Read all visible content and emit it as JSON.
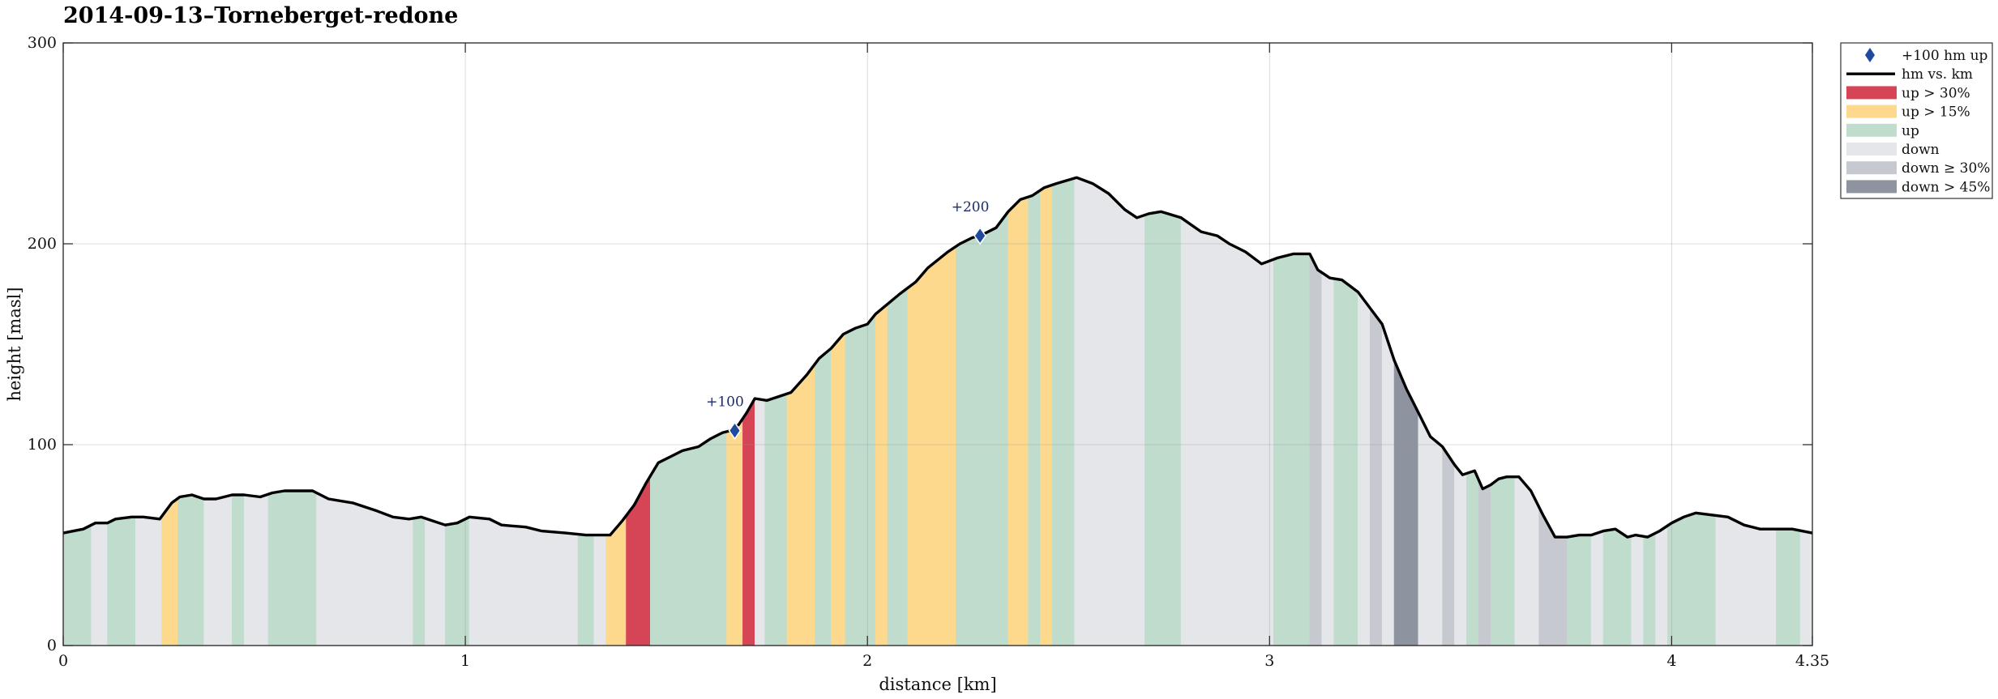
{
  "chart_data": {
    "type": "area",
    "title": "2014-09-13–Torneberget-redone",
    "xlabel": "distance [km]",
    "ylabel": "height [masl]",
    "xlim": [
      0,
      4.35
    ],
    "ylim": [
      0,
      300
    ],
    "x_ticks": [
      "0",
      "1",
      "2",
      "3",
      "4",
      "4.35"
    ],
    "x_tick_values": [
      0,
      1,
      2,
      3,
      4,
      4.35
    ],
    "y_ticks": [
      "0",
      "100",
      "200",
      "300"
    ],
    "y_tick_values": [
      0,
      100,
      200,
      300
    ],
    "grid": true,
    "legend_position": "outside-right-top",
    "legend": [
      {
        "label": "+100 hm up",
        "kind": "marker",
        "color": "#1f4aa0"
      },
      {
        "label": "hm vs. km",
        "kind": "line",
        "color": "#000000"
      },
      {
        "label": "up > 30%",
        "kind": "patch",
        "color": "#d64555"
      },
      {
        "label": "up > 15%",
        "kind": "patch",
        "color": "#fcd98d"
      },
      {
        "label": "up",
        "kind": "patch",
        "color": "#c0dccd"
      },
      {
        "label": "down",
        "kind": "patch",
        "color": "#e5e6ea"
      },
      {
        "label": "down ≥ 30%",
        "kind": "patch",
        "color": "#c7c9d0"
      },
      {
        "label": "down > 45%",
        "kind": "patch",
        "color": "#8e949f"
      }
    ],
    "profile": {
      "x": [
        0,
        0.05,
        0.08,
        0.11,
        0.13,
        0.17,
        0.2,
        0.24,
        0.27,
        0.29,
        0.32,
        0.35,
        0.38,
        0.42,
        0.45,
        0.49,
        0.52,
        0.55,
        0.62,
        0.66,
        0.72,
        0.78,
        0.82,
        0.86,
        0.89,
        0.92,
        0.95,
        0.98,
        1.01,
        1.06,
        1.09,
        1.15,
        1.19,
        1.25,
        1.3,
        1.33,
        1.36,
        1.39,
        1.42,
        1.45,
        1.48,
        1.51,
        1.54,
        1.58,
        1.61,
        1.64,
        1.66,
        1.68,
        1.7,
        1.72,
        1.75,
        1.78,
        1.81,
        1.85,
        1.88,
        1.91,
        1.94,
        1.97,
        2.0,
        2.02,
        2.05,
        2.08,
        2.12,
        2.15,
        2.2,
        2.23,
        2.26,
        2.29,
        2.32,
        2.35,
        2.38,
        2.41,
        2.44,
        2.47,
        2.52,
        2.56,
        2.6,
        2.64,
        2.67,
        2.7,
        2.73,
        2.78,
        2.83,
        2.87,
        2.9,
        2.94,
        2.98,
        3.02,
        3.06,
        3.1,
        3.12,
        3.15,
        3.18,
        3.22,
        3.25,
        3.28,
        3.31,
        3.34,
        3.37,
        3.4,
        3.43,
        3.46,
        3.48,
        3.51,
        3.53,
        3.55,
        3.57,
        3.59,
        3.62,
        3.65,
        3.68,
        3.71,
        3.74,
        3.77,
        3.8,
        3.83,
        3.86,
        3.89,
        3.91,
        3.94,
        3.97,
        4.0,
        4.03,
        4.06,
        4.1,
        4.14,
        4.18,
        4.22,
        4.26,
        4.3,
        4.35
      ],
      "y": [
        56,
        58,
        61,
        61,
        63,
        64,
        64,
        63,
        71,
        74,
        75,
        73,
        73,
        75,
        75,
        74,
        76,
        77,
        77,
        73,
        71,
        67,
        64,
        63,
        64,
        62,
        60,
        61,
        64,
        63,
        60,
        59,
        57,
        56,
        55,
        55,
        55,
        62,
        70,
        81,
        91,
        94,
        97,
        99,
        103,
        106,
        107,
        110,
        116,
        123,
        122,
        124,
        126,
        135,
        143,
        148,
        155,
        158,
        160,
        165,
        170,
        175,
        181,
        188,
        196,
        200,
        203,
        205,
        208,
        216,
        222,
        224,
        228,
        230,
        233,
        230,
        225,
        217,
        213,
        215,
        216,
        213,
        206,
        204,
        200,
        196,
        190,
        193,
        195,
        195,
        187,
        183,
        182,
        176,
        168,
        160,
        142,
        128,
        116,
        104,
        99,
        90,
        85,
        87,
        78,
        80,
        83,
        84,
        84,
        77,
        65,
        54,
        54,
        55,
        55,
        57,
        58,
        54,
        55,
        54,
        57,
        61,
        64,
        66,
        65,
        64,
        60,
        58,
        58,
        58,
        56
      ]
    },
    "segments": [
      {
        "x0": 0.0,
        "x1": 0.07,
        "cat": "up"
      },
      {
        "x0": 0.07,
        "x1": 0.11,
        "cat": "down"
      },
      {
        "x0": 0.11,
        "x1": 0.18,
        "cat": "up"
      },
      {
        "x0": 0.18,
        "x1": 0.245,
        "cat": "down"
      },
      {
        "x0": 0.245,
        "x1": 0.285,
        "cat": "up15"
      },
      {
        "x0": 0.285,
        "x1": 0.35,
        "cat": "up"
      },
      {
        "x0": 0.35,
        "x1": 0.42,
        "cat": "down"
      },
      {
        "x0": 0.42,
        "x1": 0.45,
        "cat": "up"
      },
      {
        "x0": 0.45,
        "x1": 0.51,
        "cat": "down"
      },
      {
        "x0": 0.51,
        "x1": 0.63,
        "cat": "up"
      },
      {
        "x0": 0.63,
        "x1": 0.87,
        "cat": "down"
      },
      {
        "x0": 0.87,
        "x1": 0.9,
        "cat": "up"
      },
      {
        "x0": 0.9,
        "x1": 0.95,
        "cat": "down"
      },
      {
        "x0": 0.95,
        "x1": 1.01,
        "cat": "up"
      },
      {
        "x0": 1.01,
        "x1": 1.28,
        "cat": "down"
      },
      {
        "x0": 1.28,
        "x1": 1.32,
        "cat": "up"
      },
      {
        "x0": 1.32,
        "x1": 1.35,
        "cat": "down"
      },
      {
        "x0": 1.35,
        "x1": 1.4,
        "cat": "up15"
      },
      {
        "x0": 1.4,
        "x1": 1.46,
        "cat": "up30"
      },
      {
        "x0": 1.46,
        "x1": 1.65,
        "cat": "up"
      },
      {
        "x0": 1.65,
        "x1": 1.69,
        "cat": "up15"
      },
      {
        "x0": 1.69,
        "x1": 1.72,
        "cat": "up30"
      },
      {
        "x0": 1.72,
        "x1": 1.745,
        "cat": "down"
      },
      {
        "x0": 1.745,
        "x1": 1.8,
        "cat": "up"
      },
      {
        "x0": 1.8,
        "x1": 1.87,
        "cat": "up15"
      },
      {
        "x0": 1.87,
        "x1": 1.91,
        "cat": "up"
      },
      {
        "x0": 1.91,
        "x1": 1.945,
        "cat": "up15"
      },
      {
        "x0": 1.945,
        "x1": 2.02,
        "cat": "up"
      },
      {
        "x0": 2.02,
        "x1": 2.05,
        "cat": "up15"
      },
      {
        "x0": 2.05,
        "x1": 2.1,
        "cat": "up"
      },
      {
        "x0": 2.1,
        "x1": 2.22,
        "cat": "up15"
      },
      {
        "x0": 2.22,
        "x1": 2.35,
        "cat": "up"
      },
      {
        "x0": 2.35,
        "x1": 2.4,
        "cat": "up15"
      },
      {
        "x0": 2.4,
        "x1": 2.43,
        "cat": "up"
      },
      {
        "x0": 2.43,
        "x1": 2.46,
        "cat": "up15"
      },
      {
        "x0": 2.46,
        "x1": 2.515,
        "cat": "up"
      },
      {
        "x0": 2.515,
        "x1": 2.69,
        "cat": "down"
      },
      {
        "x0": 2.69,
        "x1": 2.78,
        "cat": "up"
      },
      {
        "x0": 2.78,
        "x1": 3.01,
        "cat": "down"
      },
      {
        "x0": 3.01,
        "x1": 3.1,
        "cat": "up"
      },
      {
        "x0": 3.1,
        "x1": 3.13,
        "cat": "down30"
      },
      {
        "x0": 3.13,
        "x1": 3.16,
        "cat": "down"
      },
      {
        "x0": 3.16,
        "x1": 3.22,
        "cat": "up"
      },
      {
        "x0": 3.22,
        "x1": 3.25,
        "cat": "down"
      },
      {
        "x0": 3.25,
        "x1": 3.28,
        "cat": "down30"
      },
      {
        "x0": 3.28,
        "x1": 3.31,
        "cat": "down"
      },
      {
        "x0": 3.31,
        "x1": 3.37,
        "cat": "down45"
      },
      {
        "x0": 3.37,
        "x1": 3.43,
        "cat": "down"
      },
      {
        "x0": 3.43,
        "x1": 3.46,
        "cat": "down30"
      },
      {
        "x0": 3.46,
        "x1": 3.49,
        "cat": "down"
      },
      {
        "x0": 3.49,
        "x1": 3.52,
        "cat": "up"
      },
      {
        "x0": 3.52,
        "x1": 3.55,
        "cat": "down30"
      },
      {
        "x0": 3.55,
        "x1": 3.61,
        "cat": "up"
      },
      {
        "x0": 3.61,
        "x1": 3.67,
        "cat": "down"
      },
      {
        "x0": 3.67,
        "x1": 3.74,
        "cat": "down30"
      },
      {
        "x0": 3.74,
        "x1": 3.8,
        "cat": "up"
      },
      {
        "x0": 3.8,
        "x1": 3.83,
        "cat": "down"
      },
      {
        "x0": 3.83,
        "x1": 3.9,
        "cat": "up"
      },
      {
        "x0": 3.9,
        "x1": 3.93,
        "cat": "down"
      },
      {
        "x0": 3.93,
        "x1": 3.96,
        "cat": "up"
      },
      {
        "x0": 3.96,
        "x1": 3.99,
        "cat": "down"
      },
      {
        "x0": 3.99,
        "x1": 4.11,
        "cat": "up"
      },
      {
        "x0": 4.11,
        "x1": 4.26,
        "cat": "down"
      },
      {
        "x0": 4.26,
        "x1": 4.32,
        "cat": "up"
      },
      {
        "x0": 4.32,
        "x1": 4.35,
        "cat": "down"
      }
    ],
    "markers": [
      {
        "label": "+100",
        "x": 1.67,
        "y": 107
      },
      {
        "label": "+200",
        "x": 2.28,
        "y": 204
      }
    ]
  }
}
